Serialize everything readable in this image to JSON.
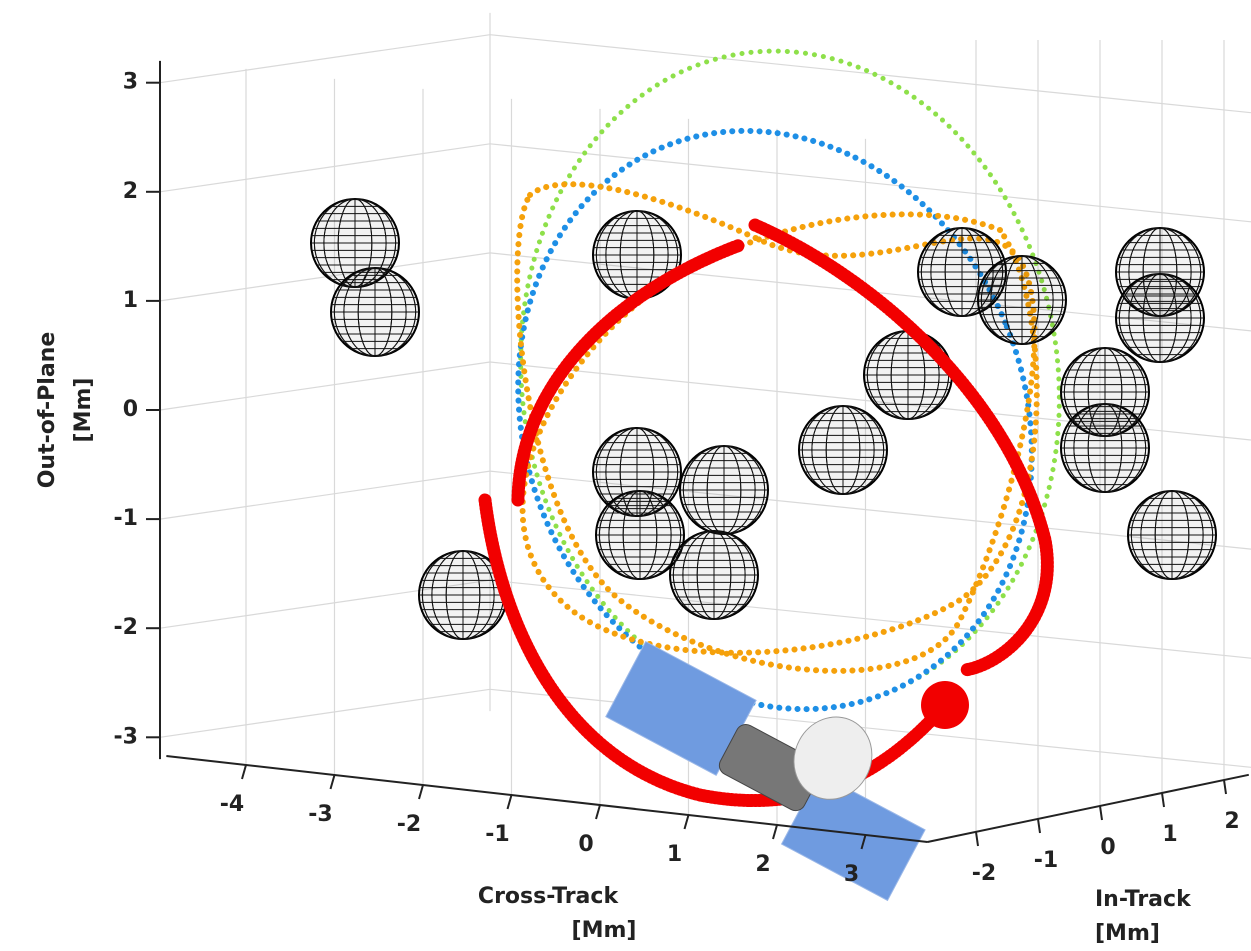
{
  "chart_data": {
    "type": "scatter3d",
    "xlabel": [
      "Cross-Track",
      "[Mm]"
    ],
    "ylabel": [
      "In-Track",
      "[Mm]"
    ],
    "zlabel": [
      "Out-of-Plane",
      "[Mm]"
    ],
    "xlim": [
      -4.9,
      3.7
    ],
    "xticks": [
      -4,
      -3,
      -2,
      -1,
      0,
      1,
      2,
      3
    ],
    "ylim": [
      -2.8,
      2.4
    ],
    "yticks": [
      -2,
      -1,
      0,
      1,
      2
    ],
    "zlim": [
      -3.2,
      3.2
    ],
    "zticks": [
      -3,
      -2,
      -1,
      0,
      1,
      2,
      3
    ],
    "grid": true
  }
}
